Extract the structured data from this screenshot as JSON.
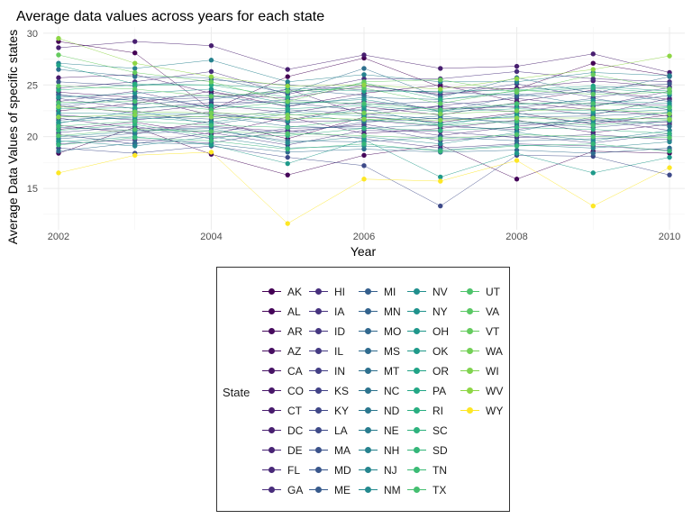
{
  "chart_data": {
    "type": "line",
    "title": "Average data values across years for each state",
    "xlabel": "Year",
    "ylabel": "Average Data Values of specific states",
    "x": [
      2002,
      2003,
      2004,
      2005,
      2006,
      2007,
      2008,
      2009,
      2010
    ],
    "xlim": [
      2001.8,
      2010.2
    ],
    "ylim": [
      11,
      30.6
    ],
    "x_ticks": [
      2002,
      2004,
      2006,
      2008,
      2010
    ],
    "y_ticks": [
      15,
      20,
      25,
      30
    ],
    "grid": true,
    "legend_title": "State",
    "legend_position": "bottom",
    "series": [
      {
        "name": "AK",
        "color": "#440154",
        "values": [
          29.2,
          28.1,
          22.6,
          25.8,
          27.6,
          24.8,
          24.6,
          27.1,
          25.9
        ]
      },
      {
        "name": "AL",
        "color": "#450559",
        "values": [
          18.4,
          20.9,
          18.3,
          16.3,
          18.2,
          19.2,
          15.9,
          18.6,
          18.4
        ]
      },
      {
        "name": "AR",
        "color": "#460a5d",
        "values": [
          21.1,
          20.3,
          21.5,
          19.8,
          21.9,
          21.4,
          22.3,
          21.2,
          22.1
        ]
      },
      {
        "name": "AZ",
        "color": "#470e61",
        "values": [
          22.5,
          23.2,
          24.4,
          22.9,
          24.2,
          25.0,
          23.4,
          24.5,
          23.6
        ]
      },
      {
        "name": "CA",
        "color": "#471365",
        "values": [
          24.3,
          23.8,
          22.1,
          21.6,
          22.9,
          22.1,
          23.3,
          22.6,
          22.0
        ]
      },
      {
        "name": "CO",
        "color": "#481769",
        "values": [
          20.7,
          21.4,
          20.2,
          21.9,
          20.3,
          20.8,
          21.6,
          20.4,
          21.2
        ]
      },
      {
        "name": "CT",
        "color": "#481b6d",
        "values": [
          25.7,
          26.0,
          24.2,
          23.7,
          24.9,
          24.1,
          24.7,
          25.4,
          24.8
        ]
      },
      {
        "name": "DC",
        "color": "#481f70",
        "values": [
          28.6,
          29.2,
          28.8,
          26.5,
          27.9,
          26.6,
          26.8,
          28.0,
          26.2
        ]
      },
      {
        "name": "DE",
        "color": "#482374",
        "values": [
          23.0,
          22.3,
          23.1,
          22.3,
          23.4,
          22.7,
          22.9,
          22.1,
          23.7
        ]
      },
      {
        "name": "FL",
        "color": "#482878",
        "values": [
          21.8,
          20.8,
          21.0,
          20.5,
          21.2,
          20.1,
          21.0,
          21.7,
          20.6
        ]
      },
      {
        "name": "GA",
        "color": "#482c7b",
        "values": [
          23.4,
          24.4,
          22.7,
          24.6,
          22.1,
          23.0,
          23.7,
          22.9,
          24.4
        ]
      },
      {
        "name": "HI",
        "color": "#472f7d",
        "values": [
          24.7,
          25.3,
          26.3,
          24.1,
          25.6,
          25.6,
          26.3,
          25.6,
          25.3
        ]
      },
      {
        "name": "IA",
        "color": "#46337f",
        "values": [
          22.1,
          21.6,
          22.4,
          21.4,
          21.6,
          21.0,
          20.7,
          21.5,
          21.4
        ]
      },
      {
        "name": "ID",
        "color": "#453781",
        "values": [
          19.3,
          19.7,
          19.4,
          20.6,
          19.8,
          18.9,
          19.3,
          19.1,
          18.7
        ]
      },
      {
        "name": "IL",
        "color": "#443a83",
        "values": [
          20.2,
          19.3,
          20.4,
          19.2,
          20.6,
          20.5,
          19.9,
          20.2,
          19.7
        ]
      },
      {
        "name": "IN",
        "color": "#423e85",
        "values": [
          23.7,
          22.7,
          23.3,
          23.3,
          22.5,
          22.9,
          22.4,
          23.3,
          23.0
        ]
      },
      {
        "name": "KS",
        "color": "#414287",
        "values": [
          24.0,
          23.5,
          23.8,
          24.3,
          25.0,
          24.0,
          25.1,
          23.8,
          24.7
        ]
      },
      {
        "name": "KY",
        "color": "#3f4788",
        "values": [
          20.4,
          21.0,
          19.8,
          20.8,
          21.0,
          19.6,
          20.1,
          19.4,
          20.3
        ]
      },
      {
        "name": "LA",
        "color": "#3e4a89",
        "values": [
          18.9,
          18.4,
          19.1,
          18.0,
          17.2,
          13.3,
          18.2,
          18.1,
          16.3
        ]
      },
      {
        "name": "MA",
        "color": "#3b528b",
        "values": [
          25.3,
          24.9,
          25.5,
          25.0,
          24.5,
          24.3,
          24.0,
          24.7,
          25.1
        ]
      },
      {
        "name": "MD",
        "color": "#39568c",
        "values": [
          22.8,
          23.9,
          22.9,
          23.6,
          23.1,
          23.4,
          22.8,
          23.7,
          22.6
        ]
      },
      {
        "name": "ME",
        "color": "#375a8c",
        "values": [
          20.9,
          20.6,
          20.9,
          20.3,
          21.4,
          21.8,
          21.4,
          20.9,
          21.5
        ]
      },
      {
        "name": "MI",
        "color": "#355f8d",
        "values": [
          21.6,
          22.0,
          21.7,
          22.6,
          22.2,
          21.7,
          21.9,
          22.0,
          22.3
        ]
      },
      {
        "name": "MN",
        "color": "#33638d",
        "values": [
          24.1,
          23.1,
          23.6,
          24.6,
          24.0,
          22.4,
          23.9,
          24.4,
          23.4
        ]
      },
      {
        "name": "MO",
        "color": "#31688e",
        "values": [
          19.8,
          20.3,
          20.6,
          19.6,
          19.5,
          20.0,
          19.6,
          19.8,
          20.1
        ]
      },
      {
        "name": "MS",
        "color": "#2f6b8e",
        "values": [
          18.6,
          19.4,
          19.3,
          18.5,
          18.8,
          18.5,
          18.7,
          18.4,
          18.9
        ]
      },
      {
        "name": "MT",
        "color": "#2d708e",
        "values": [
          26.5,
          25.8,
          25.7,
          24.2,
          26.6,
          23.8,
          25.7,
          24.2,
          25.8
        ]
      },
      {
        "name": "NC",
        "color": "#2c738e",
        "values": [
          22.0,
          21.7,
          22.0,
          21.0,
          20.8,
          21.2,
          20.5,
          21.9,
          21.0
        ]
      },
      {
        "name": "ND",
        "color": "#2a778e",
        "values": [
          23.1,
          23.7,
          24.0,
          23.0,
          23.8,
          23.6,
          24.2,
          23.0,
          24.0
        ]
      },
      {
        "name": "NE",
        "color": "#287c8e",
        "values": [
          21.3,
          22.5,
          21.2,
          22.2,
          21.5,
          22.0,
          21.2,
          21.6,
          21.8
        ]
      },
      {
        "name": "NH",
        "color": "#26828e",
        "values": [
          27.1,
          26.6,
          27.4,
          25.3,
          26.0,
          25.3,
          25.3,
          26.2,
          25.9
        ]
      },
      {
        "name": "NJ",
        "color": "#25858e",
        "values": [
          19.6,
          19.1,
          20.0,
          18.9,
          19.1,
          18.7,
          19.2,
          18.9,
          19.5
        ]
      },
      {
        "name": "NM",
        "color": "#23898e",
        "values": [
          20.0,
          20.5,
          20.8,
          19.4,
          20.0,
          19.3,
          20.4,
          19.6,
          20.6
        ]
      },
      {
        "name": "NV",
        "color": "#218f8d",
        "values": [
          22.3,
          22.2,
          22.2,
          21.5,
          22.7,
          21.1,
          22.2,
          22.3,
          22.6
        ]
      },
      {
        "name": "NY",
        "color": "#1f928c",
        "values": [
          23.8,
          24.2,
          24.6,
          23.2,
          23.6,
          22.5,
          23.1,
          23.5,
          23.2
        ]
      },
      {
        "name": "OH",
        "color": "#1f978b",
        "values": [
          21.4,
          21.9,
          21.4,
          22.4,
          22.0,
          21.3,
          22.0,
          21.3,
          22.4
        ]
      },
      {
        "name": "OK",
        "color": "#1f9a8a",
        "values": [
          19.5,
          20.0,
          19.2,
          17.4,
          19.7,
          16.1,
          18.4,
          16.5,
          18.0
        ]
      },
      {
        "name": "OR",
        "color": "#20a386",
        "values": [
          26.9,
          25.1,
          25.0,
          24.7,
          24.4,
          24.4,
          24.5,
          24.9,
          24.4
        ]
      },
      {
        "name": "PA",
        "color": "#22a785",
        "values": [
          22.7,
          22.8,
          23.0,
          22.7,
          23.0,
          22.4,
          22.7,
          22.5,
          22.9
        ]
      },
      {
        "name": "RI",
        "color": "#28ae80",
        "values": [
          24.5,
          25.0,
          25.0,
          23.8,
          25.2,
          23.6,
          24.4,
          24.7,
          24.2
        ]
      },
      {
        "name": "SC",
        "color": "#2db27d",
        "values": [
          20.6,
          21.2,
          20.0,
          20.1,
          20.8,
          20.6,
          20.9,
          20.7,
          20.3
        ]
      },
      {
        "name": "SD",
        "color": "#34b679",
        "values": [
          19.2,
          19.9,
          19.6,
          18.8,
          19.3,
          18.6,
          19.1,
          19.3,
          18.6
        ]
      },
      {
        "name": "TN",
        "color": "#3bbb75",
        "values": [
          21.0,
          21.5,
          21.1,
          20.9,
          21.7,
          21.1,
          21.5,
          21.1,
          21.6
        ]
      },
      {
        "name": "TX",
        "color": "#44bf70",
        "values": [
          23.3,
          23.4,
          22.6,
          23.4,
          23.2,
          22.6,
          23.2,
          23.2,
          22.8
        ]
      },
      {
        "name": "UT",
        "color": "#4ec36b",
        "values": [
          20.1,
          20.7,
          20.5,
          20.3,
          20.1,
          19.8,
          20.2,
          20.0,
          19.9
        ]
      },
      {
        "name": "VA",
        "color": "#5ac864",
        "values": [
          24.9,
          24.6,
          23.9,
          24.4,
          24.7,
          23.2,
          24.5,
          24.1,
          24.3
        ]
      },
      {
        "name": "VT",
        "color": "#65cb5e",
        "values": [
          27.9,
          26.2,
          25.3,
          23.4,
          25.3,
          25.5,
          24.3,
          26.0,
          24.6
        ]
      },
      {
        "name": "WA",
        "color": "#73d056",
        "values": [
          22.9,
          22.4,
          22.3,
          22.1,
          22.3,
          22.2,
          22.5,
          22.7,
          22.2
        ]
      },
      {
        "name": "WI",
        "color": "#80d34f",
        "values": [
          21.9,
          22.1,
          21.9,
          21.8,
          21.7,
          21.6,
          21.8,
          21.8,
          21.7
        ]
      },
      {
        "name": "WV",
        "color": "#8ed645",
        "values": [
          29.5,
          27.1,
          25.8,
          24.9,
          25.0,
          24.6,
          25.6,
          26.5,
          27.8
        ]
      },
      {
        "name": "WY",
        "color": "#fde725",
        "values": [
          16.5,
          18.2,
          18.5,
          11.6,
          15.9,
          15.7,
          17.7,
          13.3,
          17.0
        ]
      }
    ]
  }
}
